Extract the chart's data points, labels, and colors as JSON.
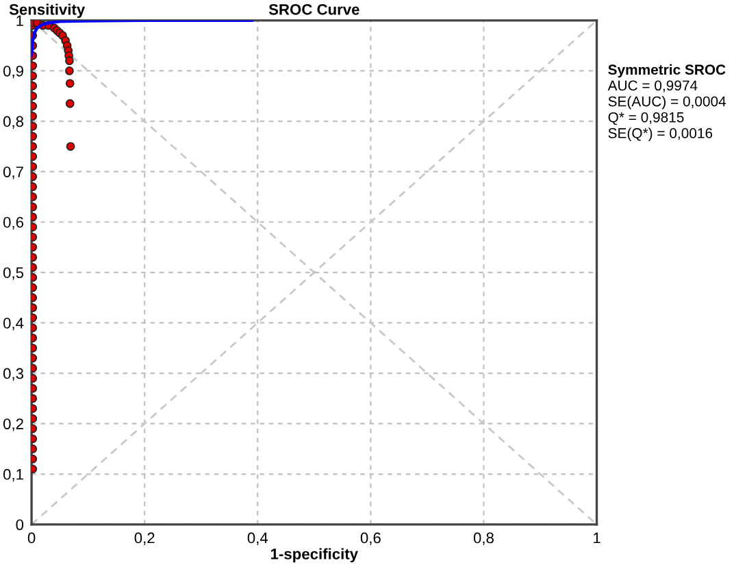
{
  "chart_data": {
    "type": "scatter",
    "title": "SROC Curve",
    "xlabel": "1-specificity",
    "ylabel": "Sensitivity",
    "xlim": [
      0,
      1
    ],
    "ylim": [
      0,
      1
    ],
    "xticks": [
      0,
      {
        "value": 0.2,
        "label": "0,2"
      },
      {
        "value": 0.4,
        "label": "0,4"
      },
      {
        "value": 0.6,
        "label": "0,6"
      },
      {
        "value": 0.8,
        "label": "0,8"
      },
      1
    ],
    "yticks": [
      0,
      {
        "value": 0.1,
        "label": "0,1"
      },
      {
        "value": 0.2,
        "label": "0,2"
      },
      {
        "value": 0.3,
        "label": "0,3"
      },
      {
        "value": 0.4,
        "label": "0,4"
      },
      {
        "value": 0.5,
        "label": "0,5"
      },
      {
        "value": 0.6,
        "label": "0,6"
      },
      {
        "value": 0.7,
        "label": "0,7"
      },
      {
        "value": 0.8,
        "label": "0,8"
      },
      {
        "value": 0.9,
        "label": "0,9"
      },
      1
    ],
    "grid": true,
    "legend": false,
    "series": [
      {
        "type": "line",
        "color": "#c8c8c8",
        "line_style": "dashed",
        "x": [
          0,
          1
        ],
        "values": [
          0,
          1
        ]
      },
      {
        "type": "line",
        "color": "#c8c8c8",
        "line_style": "dashed",
        "x": [
          0,
          1
        ],
        "values": [
          1,
          0
        ]
      },
      {
        "color": "#dd0000",
        "marker": "circle",
        "x": [
          0.002,
          0.002,
          0.002,
          0.002,
          0.002,
          0.002,
          0.002,
          0.002,
          0.002,
          0.002,
          0.002,
          0.002,
          0.002,
          0.002,
          0.002,
          0.002,
          0.002,
          0.002,
          0.002,
          0.002,
          0.002,
          0.002,
          0.002,
          0.002,
          0.002,
          0.002,
          0.002,
          0.002,
          0.002,
          0.002,
          0.002,
          0.002,
          0.002,
          0.002,
          0.002,
          0.002,
          0.002,
          0.002,
          0.002,
          0.002,
          0.002,
          0.002,
          0.002,
          0.002,
          0.002,
          0.005,
          0.01,
          0.02,
          0.03,
          0.04,
          0.045,
          0.05,
          0.055,
          0.06,
          0.063,
          0.065,
          0.066,
          0.067,
          0.067,
          0.068,
          0.068,
          0.069
        ],
        "values": [
          0.11,
          0.13,
          0.15,
          0.17,
          0.19,
          0.21,
          0.23,
          0.25,
          0.27,
          0.29,
          0.31,
          0.33,
          0.35,
          0.37,
          0.39,
          0.41,
          0.43,
          0.45,
          0.47,
          0.49,
          0.51,
          0.53,
          0.55,
          0.57,
          0.59,
          0.61,
          0.63,
          0.65,
          0.67,
          0.69,
          0.71,
          0.73,
          0.75,
          0.77,
          0.79,
          0.81,
          0.83,
          0.85,
          0.87,
          0.89,
          0.91,
          0.93,
          0.95,
          0.97,
          0.99,
          0.995,
          0.995,
          0.99,
          0.99,
          0.985,
          0.98,
          0.975,
          0.97,
          0.96,
          0.95,
          0.94,
          0.93,
          0.92,
          0.9,
          0.875,
          0.835,
          0.75
        ]
      },
      {
        "type": "line",
        "color": "#0000ff",
        "line_style": "solid",
        "x": [
          0,
          0.002,
          0.005,
          0.01,
          0.02,
          0.03,
          0.05,
          0.1,
          0.2,
          0.39
        ],
        "values": [
          0.93,
          0.96,
          0.975,
          0.985,
          0.992,
          0.995,
          0.998,
          0.999,
          1,
          1
        ]
      }
    ],
    "annotations": [
      "Symmetric SROC",
      "AUC = 0,9974",
      "SE(AUC) = 0,0004",
      "Q* = 0,9815",
      "SE(Q*) = 0,0016"
    ]
  }
}
